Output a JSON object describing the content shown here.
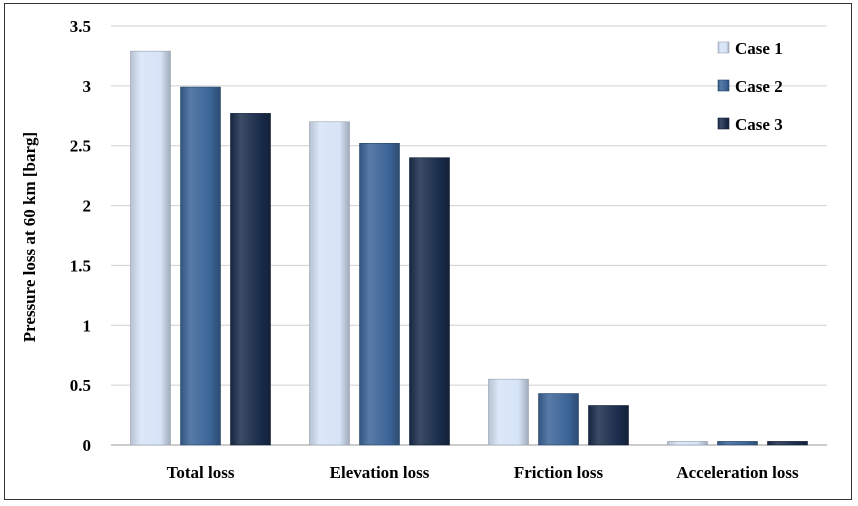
{
  "chart_data": {
    "type": "bar",
    "title": "",
    "xlabel": "",
    "ylabel": "Pressure loss at 60 km [barg]",
    "ylim": [
      0,
      3.5
    ],
    "yticks": [
      0,
      0.5,
      1,
      1.5,
      2,
      2.5,
      3,
      3.5
    ],
    "ytick_labels": [
      "0",
      "0.5",
      "1",
      "1.5",
      "2",
      "2.5",
      "3",
      "3.5"
    ],
    "grid": true,
    "legend_position": "top-right",
    "categories": [
      "Total loss",
      "Elevation loss",
      "Friction loss",
      "Acceleration loss"
    ],
    "series": [
      {
        "name": "Case 1",
        "color": "#d6e4f7",
        "values": [
          3.29,
          2.7,
          0.55,
          0.03
        ]
      },
      {
        "name": "Case 2",
        "color": "#3b6497",
        "values": [
          2.99,
          2.52,
          0.43,
          0.03
        ]
      },
      {
        "name": "Case 3",
        "color": "#1a2c4b",
        "values": [
          2.77,
          2.4,
          0.33,
          0.03
        ]
      }
    ]
  }
}
